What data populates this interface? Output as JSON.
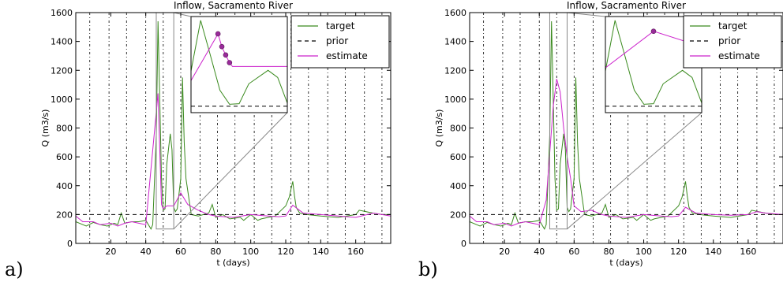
{
  "colors": {
    "target": "#3a8a1e",
    "prior": "#000000",
    "estimate": "#cc22cc",
    "zoom_box": "#888888",
    "marker": "#9a2a9a"
  },
  "panels": [
    {
      "label": "a)"
    },
    {
      "label": "b)"
    }
  ],
  "chart_data": [
    {
      "type": "line",
      "title": "Inflow, Sacramento River",
      "xlabel": "t (days)",
      "ylabel": "Q (m3/s)",
      "xlim": [
        0,
        180
      ],
      "ylim": [
        0,
        1600
      ],
      "xticks": [
        20,
        40,
        60,
        80,
        100,
        120,
        140,
        160
      ],
      "yticks": [
        0,
        200,
        400,
        600,
        800,
        1000,
        1200,
        1400,
        1600
      ],
      "observation_days": [
        8,
        19,
        29,
        40,
        50,
        60,
        71,
        81,
        91,
        102,
        112,
        123,
        133,
        144,
        154,
        165,
        175
      ],
      "legend": {
        "position": "top-right",
        "entries": [
          "target",
          "prior",
          "estimate"
        ]
      },
      "series": [
        {
          "name": "target",
          "style": "solid",
          "x": [
            0,
            4,
            6,
            10,
            14,
            18,
            22,
            24,
            26,
            28,
            32,
            36,
            40,
            43,
            44,
            46,
            47,
            48,
            49,
            50,
            51,
            52,
            54,
            55,
            56,
            57,
            58,
            60,
            61,
            62,
            63,
            66,
            70,
            76,
            78,
            80,
            84,
            88,
            94,
            96,
            100,
            104,
            106,
            110,
            114,
            120,
            122,
            124,
            125,
            126,
            128,
            132,
            140,
            150,
            160,
            162,
            166,
            170,
            175,
            180
          ],
          "y": [
            150,
            130,
            120,
            145,
            130,
            120,
            140,
            130,
            210,
            140,
            150,
            150,
            160,
            100,
            130,
            750,
            1540,
            1000,
            450,
            230,
            240,
            550,
            760,
            650,
            250,
            220,
            240,
            450,
            1150,
            700,
            450,
            200,
            190,
            210,
            270,
            180,
            200,
            170,
            180,
            160,
            200,
            160,
            170,
            180,
            190,
            260,
            320,
            430,
            330,
            250,
            210,
            200,
            190,
            180,
            200,
            230,
            220,
            210,
            200,
            200
          ]
        },
        {
          "name": "prior",
          "style": "dashed",
          "x": [
            0,
            180
          ],
          "y": [
            200,
            200
          ]
        },
        {
          "name": "estimate",
          "style": "solid",
          "x": [
            0,
            4,
            10,
            14,
            20,
            24,
            28,
            32,
            36,
            40,
            47,
            49,
            50,
            52,
            56,
            60,
            64,
            70,
            76,
            80,
            90,
            100,
            110,
            116,
            120,
            124,
            130,
            140,
            150,
            160,
            170,
            180
          ],
          "y": [
            190,
            150,
            150,
            130,
            140,
            120,
            140,
            150,
            140,
            130,
            1040,
            270,
            240,
            260,
            260,
            350,
            270,
            230,
            200,
            190,
            180,
            200,
            190,
            185,
            190,
            265,
            210,
            200,
            190,
            180,
            210,
            190
          ]
        }
      ],
      "inset": {
        "zoom_x": [
          46,
          56
        ],
        "zoom_y": [
          100,
          1600
        ],
        "series": [
          {
            "name": "target",
            "x": [
              46,
              47,
              48,
              49,
              50,
              51,
              52,
              54,
              55,
              56
            ],
            "y": [
              750,
              1540,
              1000,
              450,
              230,
              240,
              550,
              760,
              650,
              250
            ]
          },
          {
            "name": "prior",
            "x": [
              46,
              56
            ],
            "y": [
              200,
              200
            ]
          },
          {
            "name": "estimate",
            "x": [
              46,
              48.8,
              49.2,
              49.6,
              50,
              50.3,
              56
            ],
            "y": [
              600,
              1330,
              1130,
              1000,
              880,
              820,
              820
            ]
          }
        ],
        "markers": {
          "x": [
            48.8,
            49.2,
            49.6,
            50
          ],
          "y": [
            1330,
            1130,
            1000,
            880
          ]
        }
      }
    },
    {
      "type": "line",
      "title": "Inflow, Sacramento River",
      "xlabel": "t (days)",
      "ylabel": "Q (m3/s)",
      "xlim": [
        0,
        180
      ],
      "ylim": [
        0,
        1600
      ],
      "xticks": [
        20,
        40,
        60,
        80,
        100,
        120,
        140,
        160
      ],
      "yticks": [
        0,
        200,
        400,
        600,
        800,
        1000,
        1200,
        1400,
        1600
      ],
      "observation_days": [
        8,
        19,
        29,
        40,
        50,
        60,
        71,
        81,
        91,
        102,
        112,
        123,
        133,
        144,
        154,
        165,
        175
      ],
      "legend": {
        "position": "top-right",
        "entries": [
          "target",
          "prior",
          "estimate"
        ]
      },
      "series": [
        {
          "name": "target",
          "style": "solid",
          "x": [
            0,
            4,
            6,
            10,
            14,
            18,
            22,
            24,
            26,
            28,
            32,
            36,
            40,
            43,
            44,
            46,
            47,
            48,
            49,
            50,
            51,
            52,
            54,
            55,
            56,
            57,
            58,
            60,
            61,
            62,
            63,
            66,
            70,
            76,
            78,
            80,
            84,
            88,
            94,
            96,
            100,
            104,
            106,
            110,
            114,
            120,
            122,
            124,
            125,
            126,
            128,
            132,
            140,
            150,
            160,
            162,
            166,
            170,
            175,
            180
          ],
          "y": [
            150,
            130,
            120,
            145,
            130,
            120,
            140,
            130,
            210,
            140,
            150,
            150,
            160,
            100,
            130,
            750,
            1540,
            1000,
            450,
            230,
            240,
            550,
            760,
            650,
            250,
            220,
            240,
            450,
            1150,
            700,
            450,
            200,
            190,
            210,
            270,
            180,
            200,
            170,
            180,
            160,
            200,
            160,
            170,
            180,
            190,
            260,
            320,
            430,
            330,
            250,
            210,
            200,
            190,
            180,
            200,
            230,
            220,
            210,
            200,
            200
          ]
        },
        {
          "name": "prior",
          "style": "dashed",
          "x": [
            0,
            180
          ],
          "y": [
            200,
            200
          ]
        },
        {
          "name": "estimate",
          "style": "solid",
          "x": [
            0,
            4,
            10,
            14,
            20,
            24,
            28,
            32,
            36,
            40,
            44,
            48,
            50,
            52,
            54,
            56,
            58,
            60,
            64,
            70,
            76,
            80,
            90,
            100,
            110,
            116,
            120,
            124,
            130,
            140,
            150,
            160,
            165,
            170,
            180
          ],
          "y": [
            190,
            150,
            150,
            130,
            140,
            120,
            140,
            150,
            140,
            130,
            300,
            950,
            1140,
            1050,
            800,
            600,
            450,
            260,
            220,
            230,
            200,
            190,
            180,
            200,
            190,
            185,
            190,
            250,
            210,
            200,
            195,
            200,
            220,
            210,
            200
          ]
        }
      ],
      "inset": {
        "zoom_x": [
          46,
          56
        ],
        "zoom_y": [
          100,
          1600
        ],
        "series": [
          {
            "name": "target",
            "x": [
              46,
              47,
              48,
              49,
              50,
              51,
              52,
              54,
              55,
              56
            ],
            "y": [
              750,
              1540,
              1000,
              450,
              230,
              240,
              550,
              760,
              650,
              250
            ]
          },
          {
            "name": "prior",
            "x": [
              46,
              56
            ],
            "y": [
              200,
              200
            ]
          },
          {
            "name": "estimate",
            "x": [
              46,
              51,
              56
            ],
            "y": [
              800,
              1370,
              1130
            ]
          }
        ],
        "markers": {
          "x": [
            51
          ],
          "y": [
            1370
          ]
        }
      }
    }
  ]
}
